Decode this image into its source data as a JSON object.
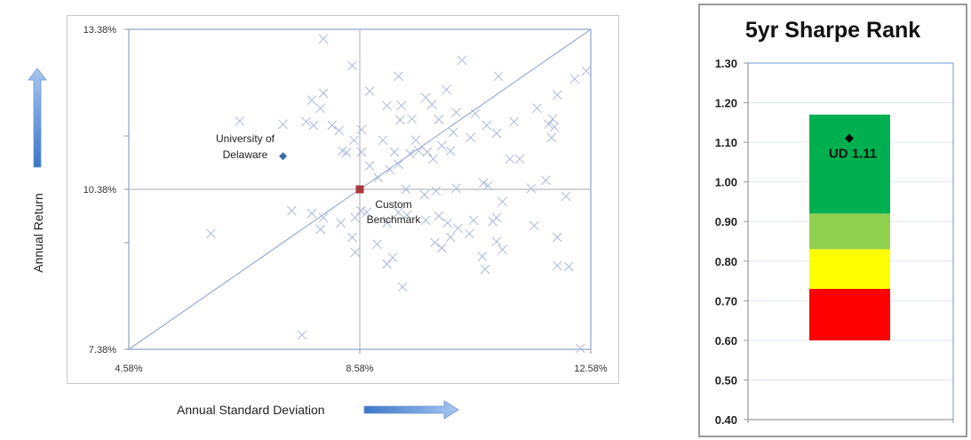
{
  "scatter": {
    "x_axis_title": "Annual Standard Deviation",
    "y_axis_title": "Annual Return",
    "x_ticks": [
      "4.58%",
      "8.58%",
      "12.58%"
    ],
    "y_ticks": [
      "13.38%",
      "10.38%",
      "7.38%"
    ],
    "labels": {
      "university": [
        "University of",
        "Delaware"
      ],
      "benchmark": [
        "Custom",
        "Benchmark"
      ]
    },
    "colors": {
      "peer": "#aab8d8",
      "university": "#3f6aa6",
      "benchmark": "#a83a3a",
      "frame": "#7f9cc9",
      "arrow": "#4a7fd0"
    }
  },
  "sharpe": {
    "title": "5yr Sharpe Rank",
    "y_ticks": [
      "1.30",
      "1.20",
      "1.10",
      "1.00",
      "0.90",
      "0.80",
      "0.70",
      "0.60",
      "0.50",
      "0.40"
    ],
    "marker_label": "UD 1.11",
    "colors": {
      "dark_green": "#00b050",
      "light_green": "#92d050",
      "yellow": "#ffff00",
      "red": "#ff0000"
    }
  },
  "chart_data": [
    {
      "type": "scatter",
      "title": "",
      "xlabel": "Annual Standard Deviation",
      "ylabel": "Annual Return",
      "xlim": [
        4.58,
        12.58
      ],
      "ylim": [
        7.38,
        13.38
      ],
      "x_ticks": [
        "4.58%",
        "8.58%",
        "12.58%"
      ],
      "y_ticks": [
        "13.38%",
        "10.38%",
        "7.38%"
      ],
      "grid": false,
      "reference_lines": [
        {
          "type": "vertical",
          "x": 8.58
        },
        {
          "type": "horizontal",
          "y": 10.38
        },
        {
          "type": "diagonal",
          "from": [
            4.58,
            7.38
          ],
          "to": [
            12.58,
            13.38
          ]
        }
      ],
      "series": [
        {
          "name": "University of Delaware",
          "marker": "diamond",
          "points": [
            [
              7.25,
              11.0
            ]
          ]
        },
        {
          "name": "Custom Benchmark",
          "marker": "square",
          "points": [
            [
              8.58,
              10.38
            ]
          ]
        },
        {
          "name": "Peers",
          "marker": "x",
          "points": [
            [
              7.95,
              13.2
            ],
            [
              8.45,
              12.7
            ],
            [
              8.75,
              12.22
            ],
            [
              10.35,
              12.8
            ],
            [
              10.98,
              12.5
            ],
            [
              12.5,
              12.6
            ],
            [
              12.0,
              12.15
            ],
            [
              12.3,
              12.45
            ],
            [
              6.5,
              11.66
            ],
            [
              7.25,
              11.6
            ],
            [
              7.65,
              11.65
            ],
            [
              7.78,
              11.58
            ],
            [
              7.9,
              11.9
            ],
            [
              7.75,
              12.05
            ],
            [
              7.95,
              12.18
            ],
            [
              8.1,
              11.58
            ],
            [
              8.22,
              11.48
            ],
            [
              8.48,
              11.3
            ],
            [
              8.61,
              11.5
            ],
            [
              8.35,
              11.07
            ],
            [
              8.61,
              11.08
            ],
            [
              8.28,
              11.1
            ],
            [
              9.05,
              11.95
            ],
            [
              9.3,
              11.95
            ],
            [
              9.28,
              11.68
            ],
            [
              9.48,
              11.7
            ],
            [
              9.72,
              12.1
            ],
            [
              9.83,
              11.97
            ],
            [
              9.25,
              12.5
            ],
            [
              10.08,
              12.25
            ],
            [
              9.95,
              11.69
            ],
            [
              10.25,
              11.82
            ],
            [
              10.58,
              11.8
            ],
            [
              10.78,
              11.58
            ],
            [
              10.2,
              11.45
            ],
            [
              10.5,
              11.35
            ],
            [
              10.95,
              11.43
            ],
            [
              11.25,
              11.65
            ],
            [
              11.65,
              11.9
            ],
            [
              11.85,
              11.6
            ],
            [
              11.9,
              11.35
            ],
            [
              11.92,
              11.7
            ],
            [
              11.95,
              11.55
            ],
            [
              8.98,
              11.3
            ],
            [
              9.18,
              11.08
            ],
            [
              9.55,
              11.3
            ],
            [
              9.6,
              11.1
            ],
            [
              9.75,
              11.08
            ],
            [
              9.85,
              10.95
            ],
            [
              9.45,
              11.05
            ],
            [
              10.0,
              11.2
            ],
            [
              10.15,
              11.1
            ],
            [
              11.18,
              10.95
            ],
            [
              11.35,
              10.95
            ],
            [
              11.8,
              10.55
            ],
            [
              9.1,
              10.75
            ],
            [
              9.25,
              10.85
            ],
            [
              8.75,
              10.82
            ],
            [
              8.9,
              10.6
            ],
            [
              10.8,
              10.45
            ],
            [
              10.72,
              10.5
            ],
            [
              11.55,
              10.4
            ],
            [
              9.38,
              10.38
            ],
            [
              9.7,
              10.28
            ],
            [
              9.9,
              10.35
            ],
            [
              10.25,
              10.4
            ],
            [
              6.0,
              9.55
            ],
            [
              7.4,
              9.98
            ],
            [
              7.75,
              9.93
            ],
            [
              7.95,
              9.85
            ],
            [
              7.9,
              9.63
            ],
            [
              8.25,
              9.75
            ],
            [
              8.5,
              9.85
            ],
            [
              8.45,
              9.48
            ],
            [
              8.6,
              9.98
            ],
            [
              8.7,
              9.95
            ],
            [
              9.05,
              9.75
            ],
            [
              9.25,
              9.95
            ],
            [
              9.4,
              9.9
            ],
            [
              9.72,
              9.8
            ],
            [
              9.95,
              9.88
            ],
            [
              10.1,
              9.75
            ],
            [
              10.28,
              9.65
            ],
            [
              10.55,
              9.8
            ],
            [
              11.05,
              10.15
            ],
            [
              11.6,
              9.7
            ],
            [
              12.15,
              10.25
            ],
            [
              12.0,
              9.48
            ],
            [
              10.88,
              9.78
            ],
            [
              10.95,
              9.85
            ],
            [
              8.5,
              9.2
            ],
            [
              8.88,
              9.35
            ],
            [
              9.05,
              8.98
            ],
            [
              9.15,
              9.1
            ],
            [
              9.88,
              9.38
            ],
            [
              10.0,
              9.28
            ],
            [
              10.15,
              9.48
            ],
            [
              10.48,
              9.55
            ],
            [
              10.95,
              9.4
            ],
            [
              11.05,
              9.25
            ],
            [
              10.7,
              9.12
            ],
            [
              10.75,
              8.88
            ],
            [
              12.0,
              8.95
            ],
            [
              12.2,
              8.93
            ],
            [
              9.32,
              8.55
            ],
            [
              7.58,
              7.65
            ],
            [
              12.4,
              7.4
            ]
          ]
        }
      ]
    },
    {
      "type": "bar",
      "title": "5yr Sharpe Rank",
      "xlabel": "",
      "ylabel": "",
      "ylim": [
        0.4,
        1.3
      ],
      "y_ticks": [
        0.4,
        0.5,
        0.6,
        0.7,
        0.8,
        0.9,
        1.0,
        1.1,
        1.2,
        1.3
      ],
      "grid": true,
      "stacked_ranges": [
        {
          "name": "red",
          "from": 0.6,
          "to": 0.73,
          "color": "#ff0000"
        },
        {
          "name": "yellow",
          "from": 0.73,
          "to": 0.83,
          "color": "#ffff00"
        },
        {
          "name": "light_green",
          "from": 0.83,
          "to": 0.92,
          "color": "#92d050"
        },
        {
          "name": "dark_green",
          "from": 0.92,
          "to": 1.17,
          "color": "#00b050"
        }
      ],
      "marker": {
        "label": "UD 1.11",
        "value": 1.11
      }
    }
  ]
}
